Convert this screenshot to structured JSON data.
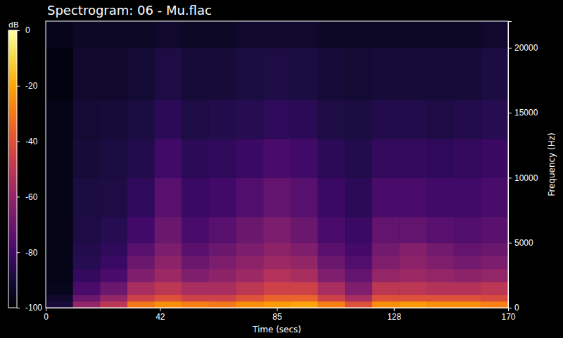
{
  "chart_data": {
    "type": "heatmap",
    "title": "Spectrogram: 06 - Mu.flac",
    "x_label": "Time (secs)",
    "y_label": "Frequency (Hz)",
    "xlim": [
      0,
      170
    ],
    "xticks": [
      0,
      42,
      85,
      128,
      170
    ],
    "ylim": [
      0,
      22050
    ],
    "yticks": [
      0,
      5000,
      10000,
      15000,
      20000
    ],
    "x_bins": [
      0,
      10,
      20,
      30,
      40,
      50,
      60,
      70,
      80,
      90,
      100,
      110,
      120,
      130,
      140,
      150,
      160,
      170
    ],
    "y_bins": [
      0,
      500,
      1000,
      2000,
      3000,
      4000,
      5000,
      7000,
      10000,
      13000,
      16000,
      20000,
      22050
    ],
    "cells": [
      [
        -90,
        -60,
        -50,
        -30,
        -25,
        -28,
        -30,
        -25,
        -22,
        -20,
        -28,
        -40,
        -25,
        -22,
        -25,
        -25,
        -28
      ],
      [
        -92,
        -70,
        -60,
        -45,
        -40,
        -45,
        -45,
        -40,
        -35,
        -35,
        -45,
        -55,
        -40,
        -40,
        -40,
        -40,
        -42
      ],
      [
        -95,
        -78,
        -70,
        -55,
        -50,
        -55,
        -55,
        -50,
        -45,
        -45,
        -55,
        -65,
        -50,
        -50,
        -52,
        -52,
        -50
      ],
      [
        -96,
        -83,
        -78,
        -65,
        -58,
        -65,
        -62,
        -58,
        -52,
        -55,
        -65,
        -72,
        -60,
        -58,
        -60,
        -62,
        -60
      ],
      [
        -96,
        -86,
        -82,
        -70,
        -62,
        -70,
        -66,
        -62,
        -58,
        -60,
        -70,
        -76,
        -65,
        -62,
        -65,
        -68,
        -66
      ],
      [
        -96,
        -87,
        -84,
        -75,
        -66,
        -74,
        -70,
        -66,
        -62,
        -65,
        -74,
        -79,
        -68,
        -64,
        -68,
        -72,
        -70
      ],
      [
        -96,
        -88,
        -86,
        -80,
        -70,
        -78,
        -75,
        -70,
        -66,
        -70,
        -78,
        -82,
        -72,
        -72,
        -75,
        -76,
        -74
      ],
      [
        -96,
        -89,
        -88,
        -84,
        -75,
        -82,
        -80,
        -76,
        -72,
        -75,
        -82,
        -85,
        -78,
        -78,
        -80,
        -80,
        -78
      ],
      [
        -96,
        -90,
        -89,
        -87,
        -80,
        -85,
        -84,
        -82,
        -78,
        -80,
        -85,
        -87,
        -83,
        -83,
        -84,
        -83,
        -82
      ],
      [
        -96,
        -91,
        -90,
        -89,
        -85,
        -88,
        -87,
        -86,
        -84,
        -85,
        -88,
        -89,
        -87,
        -87,
        -88,
        -87,
        -86
      ],
      [
        -97,
        -92,
        -92,
        -91,
        -88,
        -90,
        -90,
        -89,
        -88,
        -89,
        -90,
        -91,
        -90,
        -90,
        -90,
        -90,
        -89
      ],
      [
        -95,
        -93,
        -93,
        -93,
        -92,
        -93,
        -93,
        -92,
        -92,
        -92,
        -93,
        -93,
        -93,
        -93,
        -93,
        -93,
        -92
      ]
    ],
    "colorbar": {
      "label": "dB",
      "range": [
        -100,
        0
      ],
      "ticks": [
        0,
        -20,
        -40,
        -60,
        -80,
        -100
      ]
    }
  }
}
